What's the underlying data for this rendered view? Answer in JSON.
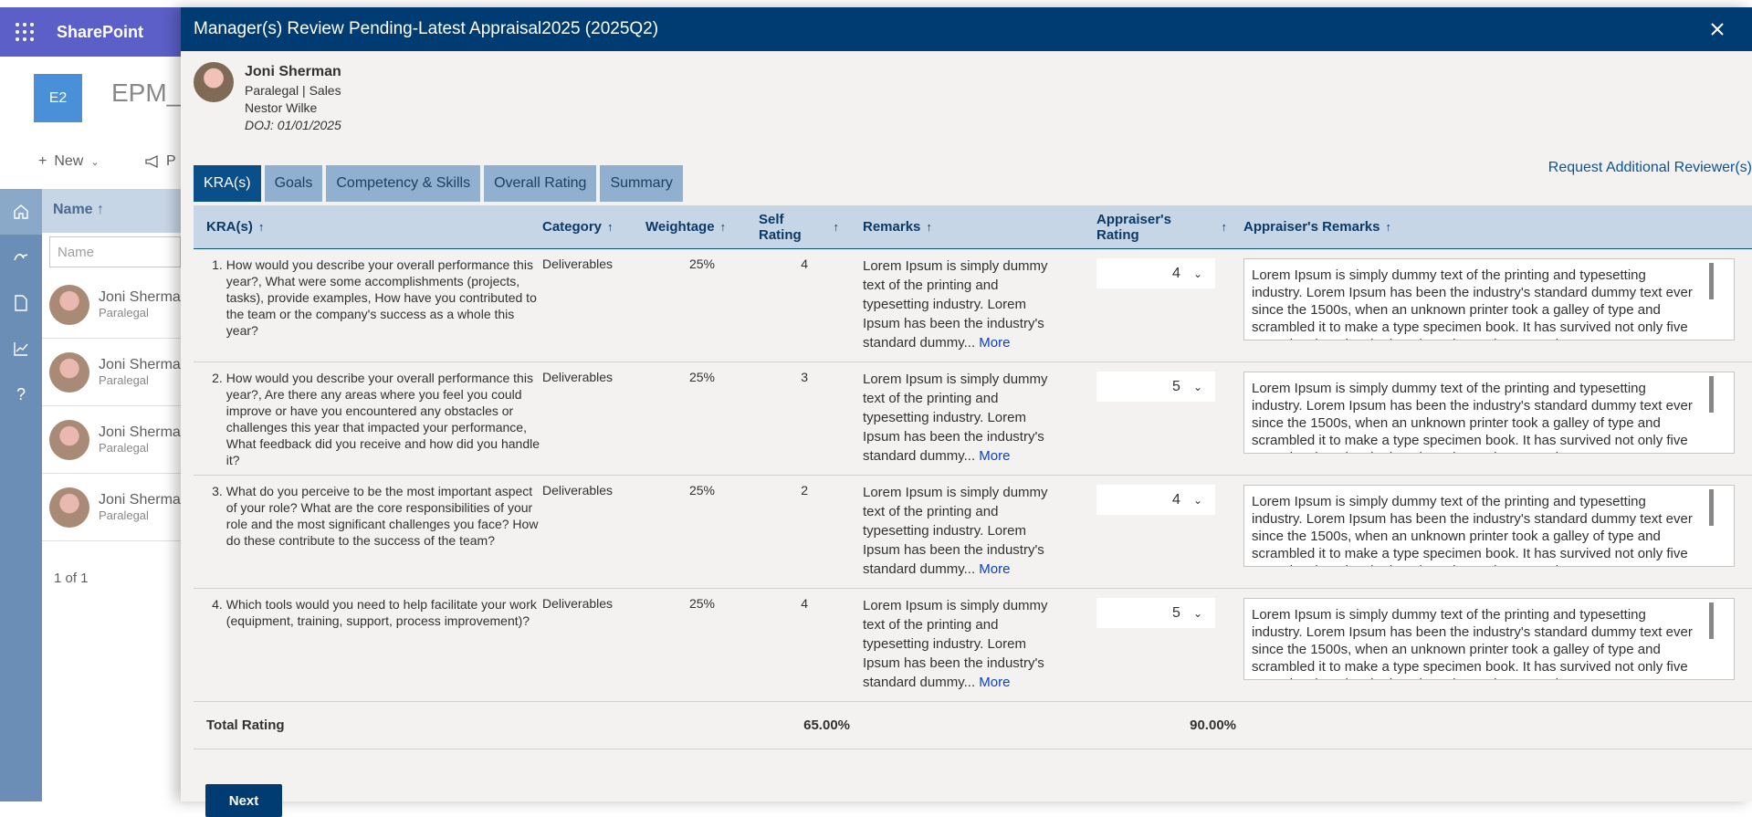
{
  "sharepoint": {
    "brand": "SharePoint",
    "site_logo": "E2",
    "site_title": "EPM_A",
    "new_label": "New",
    "promote_label": "P",
    "list_header": "Name ↑",
    "filter_placeholder": "Name",
    "rows": [
      {
        "name": "Joni Sherma",
        "role": "Paralegal"
      },
      {
        "name": "Joni Sherma",
        "role": "Paralegal"
      },
      {
        "name": "Joni Sherma",
        "role": "Paralegal"
      },
      {
        "name": "Joni Sherma",
        "role": "Paralegal"
      }
    ],
    "pager": "1 of 1"
  },
  "dialog": {
    "title": "Manager(s) Review Pending-Latest Appraisal2025 (2025Q2)",
    "employee": {
      "name": "Joni Sherman",
      "role_dept": "Paralegal | Sales",
      "manager": "Nestor Wilke",
      "doj": "DOJ: 01/01/2025"
    },
    "request_link": "Request Additional Reviewer(s)",
    "tabs": [
      "KRA(s)",
      "Goals",
      "Competency & Skills",
      "Overall Rating",
      "Summary"
    ],
    "columns": {
      "kra": "KRA(s)",
      "category": "Category",
      "weightage": "Weightage",
      "self_rating_1": "Self",
      "self_rating_2": "Rating",
      "remarks": "Remarks",
      "appraiser_rating_1": "Appraiser's",
      "appraiser_rating_2": "Rating",
      "appraiser_remarks": "Appraiser's Remarks"
    },
    "rows": [
      {
        "num": "1.",
        "question": "How would you describe your overall performance this year?, What were some accomplishments (projects, tasks), provide examples, How have you contributed to the team or the company's success as a whole this year?",
        "category": "Deliverables",
        "weightage": "25%",
        "self_rating": "4",
        "remarks": "Lorem Ipsum is simply dummy text of the printing and typesetting industry. Lorem Ipsum has been the industry's standard dummy...",
        "more": "More",
        "appraiser_rating": "4",
        "appraiser_remarks": "Lorem Ipsum is simply dummy text of the printing and typesetting industry. Lorem Ipsum has been the industry's standard dummy text ever since the 1500s, when an unknown printer took a galley of type and scrambled it to make a type specimen book. It has survived not only five centuries, but also the leap into electronic typesetting"
      },
      {
        "num": "2.",
        "question": "How would you describe your overall performance this year?, Are there any areas where you feel you could improve or have you encountered any obstacles or challenges this year that impacted your performance, What feedback did you receive and how did you handle it?",
        "category": "Deliverables",
        "weightage": "25%",
        "self_rating": "3",
        "remarks": "Lorem Ipsum is simply dummy text of the printing and typesetting industry. Lorem Ipsum has been the industry's standard dummy...",
        "more": "More",
        "appraiser_rating": "5",
        "appraiser_remarks": "Lorem Ipsum is simply dummy text of the printing and typesetting industry. Lorem Ipsum has been the industry's standard dummy text ever since the 1500s, when an unknown printer took a galley of type and scrambled it to make a type specimen book. It has survived not only five centuries, but also the leap into electronic typesetting"
      },
      {
        "num": "3.",
        "question": "What do you perceive to be the most important aspect of your role? What are the core responsibilities of your role and the most significant challenges you face? How do these contribute to the success of the team?",
        "category": "Deliverables",
        "weightage": "25%",
        "self_rating": "2",
        "remarks": "Lorem Ipsum is simply dummy text of the printing and typesetting industry. Lorem Ipsum has been the industry's standard dummy...",
        "more": "More",
        "appraiser_rating": "4",
        "appraiser_remarks": "Lorem Ipsum is simply dummy text of the printing and typesetting industry. Lorem Ipsum has been the industry's standard dummy text ever since the 1500s, when an unknown printer took a galley of type and scrambled it to make a type specimen book. It has survived not only five centuries, but also the leap into electronic typesetting"
      },
      {
        "num": "4.",
        "question": "Which tools would you need to help facilitate your work (equipment, training, support, process improvement)?",
        "category": "Deliverables",
        "weightage": "25%",
        "self_rating": "4",
        "remarks": "Lorem Ipsum is simply dummy text of the printing and typesetting industry. Lorem Ipsum has been the industry's standard dummy...",
        "more": "More",
        "appraiser_rating": "5",
        "appraiser_remarks": "Lorem Ipsum is simply dummy text of the printing and typesetting industry. Lorem Ipsum has been the industry's standard dummy text ever since the 1500s, when an unknown printer took a galley of type and scrambled it to make a type specimen book. It has survived not only five centuries, but also the leap into electronic typesetting"
      }
    ],
    "total": {
      "label": "Total Rating",
      "self": "65.00%",
      "appraiser": "90.00%"
    },
    "next_label": "Next"
  },
  "colors": {
    "header_bg": "#003c71",
    "tab_active": "#0b4f8a",
    "tab_inactive": "#8fb0cf",
    "suite_bar": "#5b5fc7"
  }
}
